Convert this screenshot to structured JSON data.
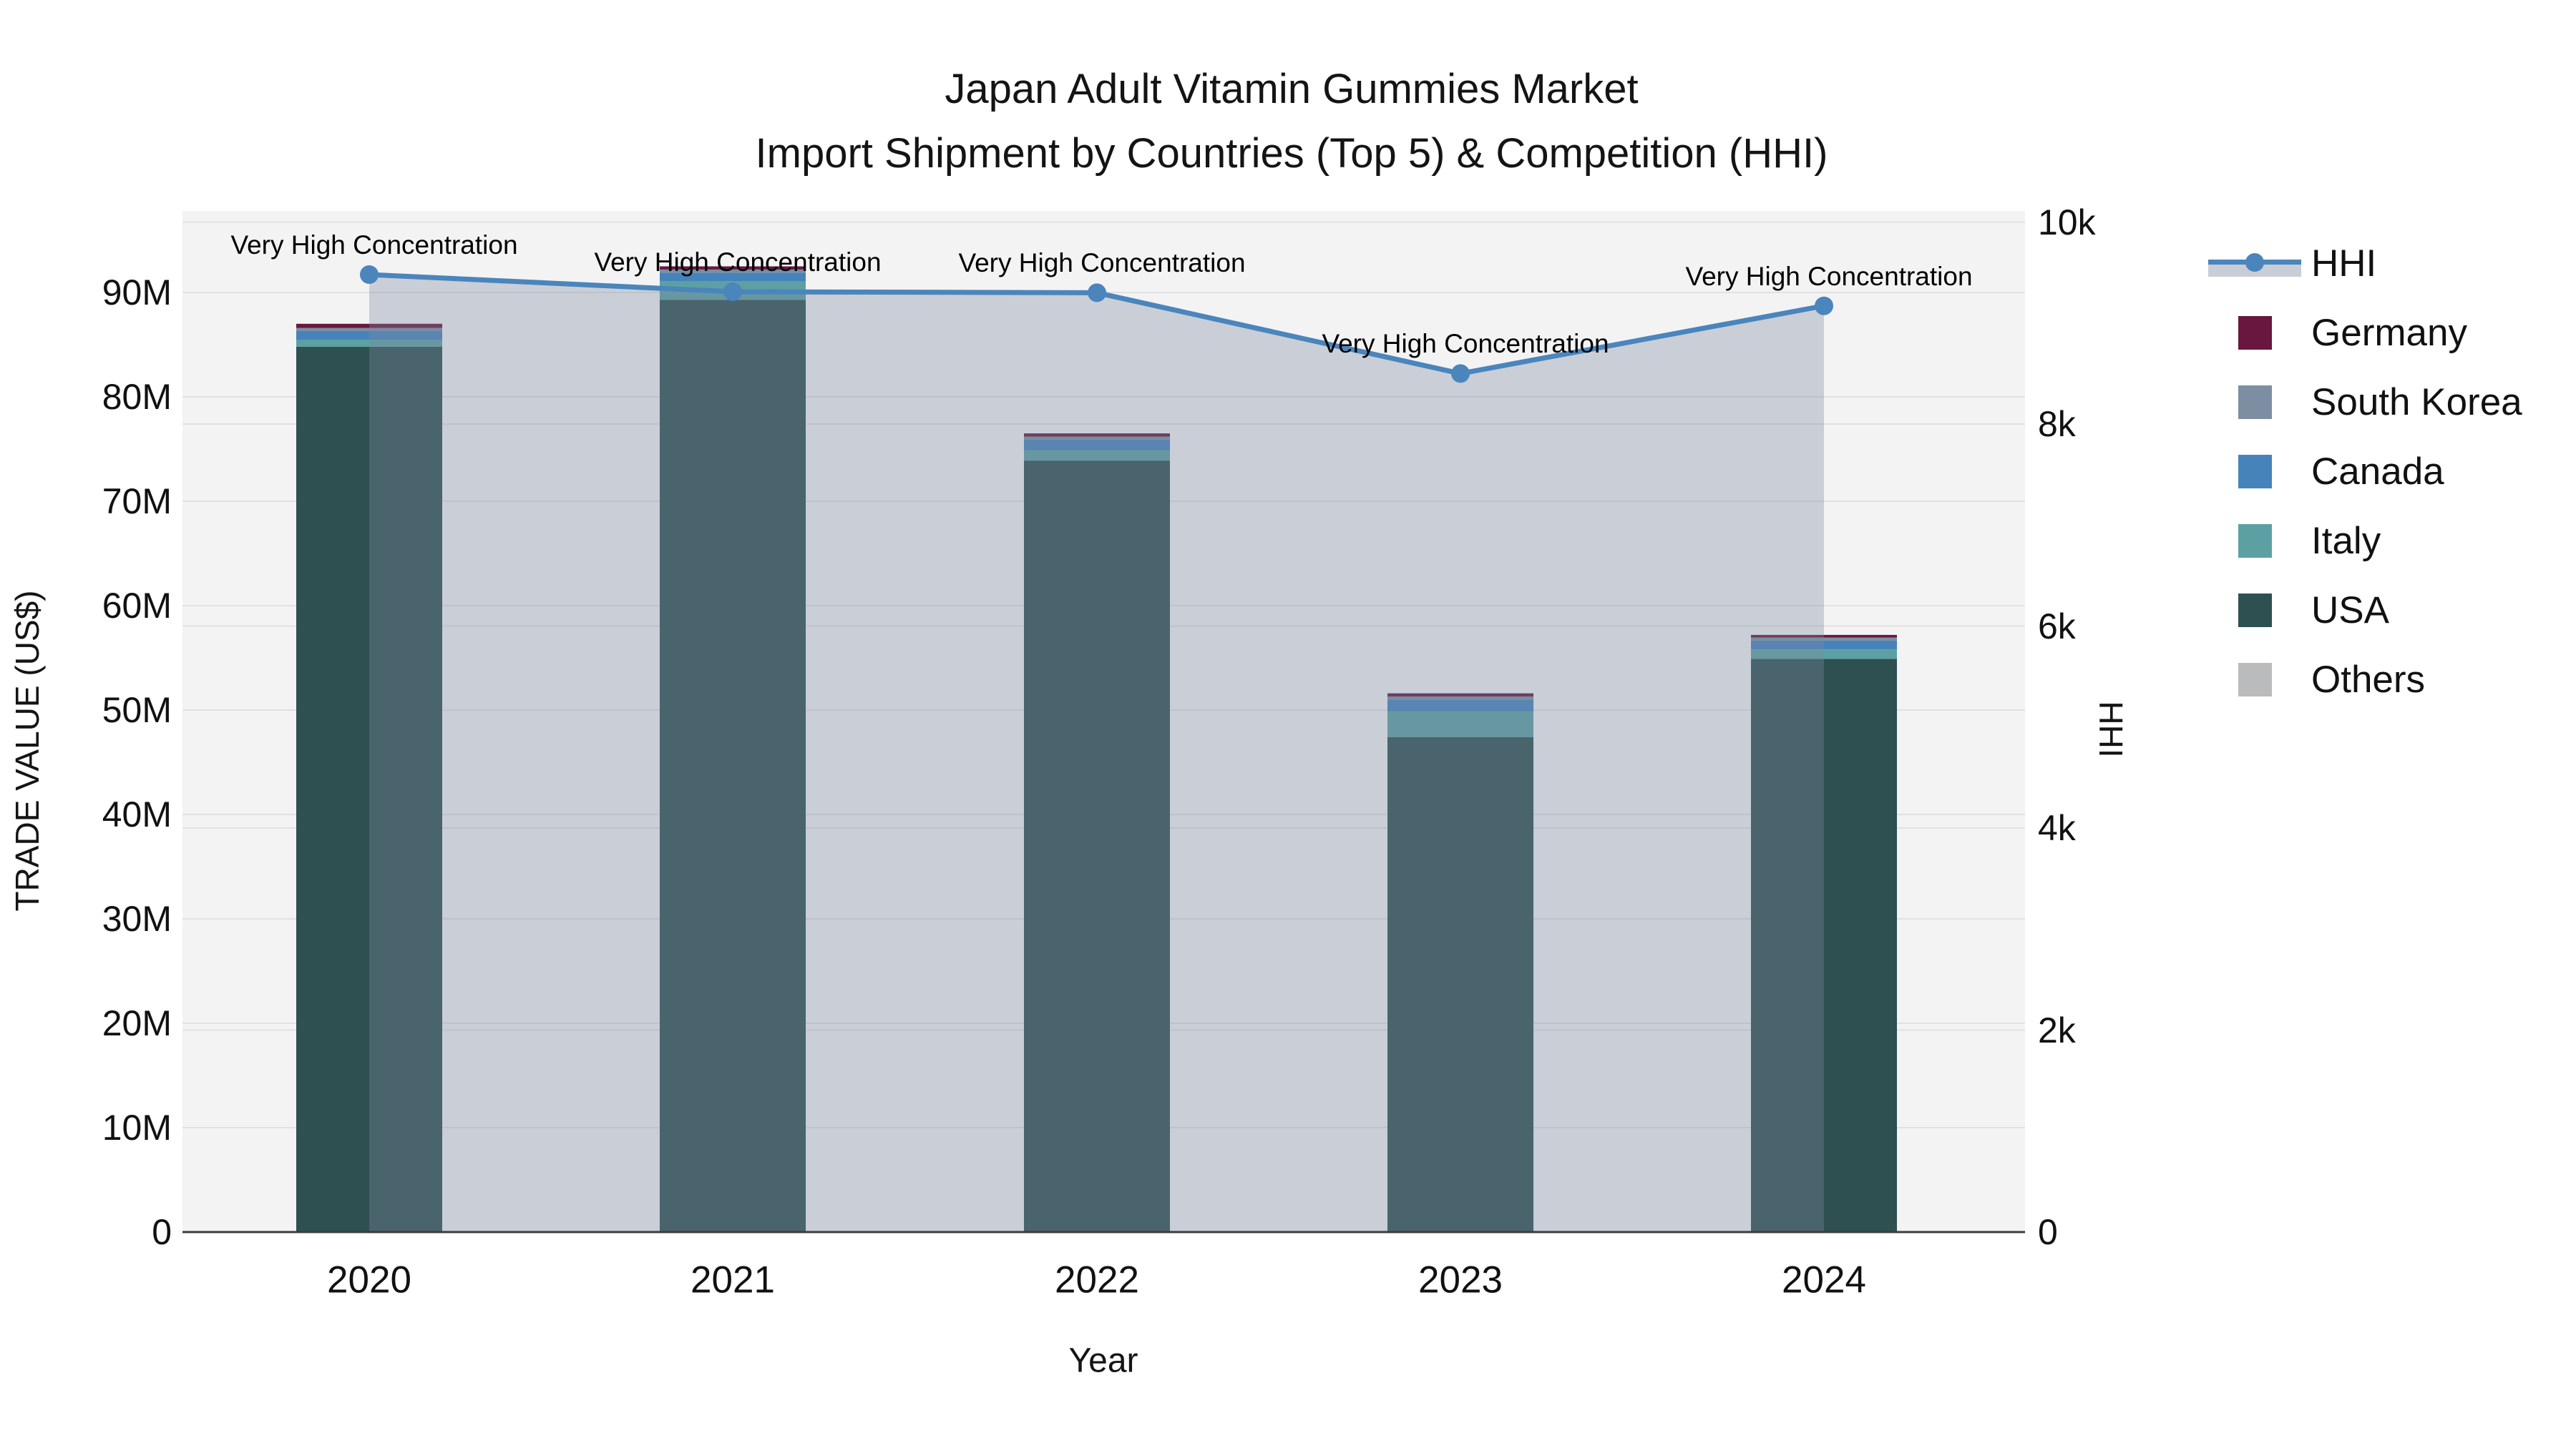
{
  "title": {
    "line1": "Japan Adult Vitamin Gummies Market",
    "line2": "Import Shipment by Countries (Top 5) & Competition (HHI)"
  },
  "axes": {
    "left": {
      "title": "TRADE VALUE (US$)",
      "tick_labels": [
        "0",
        "10M",
        "20M",
        "30M",
        "40M",
        "50M",
        "60M",
        "70M",
        "80M",
        "90M"
      ],
      "tick_values": [
        0,
        10,
        20,
        30,
        40,
        50,
        60,
        70,
        80,
        90
      ]
    },
    "right": {
      "title": "HHI",
      "tick_labels": [
        "0",
        "2k",
        "4k",
        "6k",
        "8k",
        "10k"
      ],
      "tick_values": [
        0,
        2000,
        4000,
        6000,
        8000,
        10000
      ]
    },
    "x": {
      "title": "Year",
      "tick_labels": [
        "2020",
        "2021",
        "2022",
        "2023",
        "2024"
      ]
    }
  },
  "legend": {
    "items": [
      {
        "label": "HHI",
        "type": "line",
        "color": "#4a85bc"
      },
      {
        "label": "Germany",
        "type": "swatch",
        "color": "#69173e"
      },
      {
        "label": "South Korea",
        "type": "swatch",
        "color": "#7d8ea2"
      },
      {
        "label": "Canada",
        "type": "swatch",
        "color": "#4683ba"
      },
      {
        "label": "Italy",
        "type": "swatch",
        "color": "#5ca0a4"
      },
      {
        "label": "USA",
        "type": "swatch",
        "color": "#2f5051"
      },
      {
        "label": "Others",
        "type": "swatch",
        "color": "#b9bbbd"
      }
    ]
  },
  "colors": {
    "plot_background": "#f3f3f4",
    "gridline": "#e1e1e4",
    "axis_line": "#3c3c3c",
    "hhi_line": "#4a85bc",
    "hhi_area_fill": "rgba(124,138,161,0.35)"
  },
  "chart_data": {
    "type": "bar",
    "subtype": "stacked-bars-with-line-overlay",
    "title": "Japan Adult Vitamin Gummies Market — Import Shipment by Countries (Top 5) & Competition (HHI)",
    "xlabel": "Year",
    "ylabel": "TRADE VALUE (US$)",
    "y2label": "HHI",
    "ylim": [
      0,
      98
    ],
    "y2lim": [
      0,
      10000
    ],
    "grid": true,
    "legend_position": "right",
    "categories": [
      "2020",
      "2021",
      "2022",
      "2023",
      "2024"
    ],
    "series": [
      {
        "name": "Germany",
        "axis": "left",
        "unit": "M US$",
        "color": "#69173e",
        "values": [
          0.4,
          0.3,
          0.3,
          0.3,
          0.25
        ]
      },
      {
        "name": "South Korea",
        "axis": "left",
        "unit": "M US$",
        "color": "#7d8ea2",
        "values": [
          0.3,
          0.3,
          0.3,
          0.3,
          0.3
        ]
      },
      {
        "name": "Canada",
        "axis": "left",
        "unit": "M US$",
        "color": "#4683ba",
        "values": [
          0.85,
          0.8,
          1.0,
          1.1,
          0.85
        ]
      },
      {
        "name": "Italy",
        "axis": "left",
        "unit": "M US$",
        "color": "#5ca0a4",
        "values": [
          0.65,
          1.8,
          1.0,
          2.5,
          0.9
        ]
      },
      {
        "name": "USA",
        "axis": "left",
        "unit": "M US$",
        "color": "#2f5051",
        "values": [
          84.8,
          89.3,
          73.9,
          47.4,
          54.9
        ]
      },
      {
        "name": "Others",
        "axis": "left",
        "unit": "M US$",
        "color": "#b9bbbd",
        "values": [
          0,
          0,
          0,
          0,
          0
        ]
      }
    ],
    "stacked_totals_musd": [
      87.0,
      92.5,
      76.5,
      51.6,
      57.2
    ],
    "line_series": {
      "name": "HHI",
      "axis": "right",
      "color": "#4a85bc",
      "area_fill": "rgba(124,138,161,0.35)",
      "values": [
        9480,
        9310,
        9300,
        8500,
        9170
      ],
      "point_annotations": [
        "Very High Concentration",
        "Very High Concentration",
        "Very High Concentration",
        "Very High Concentration",
        "Very High Concentration"
      ]
    }
  }
}
